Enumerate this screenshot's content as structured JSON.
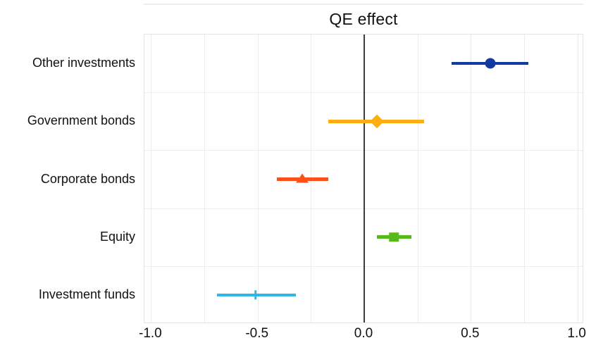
{
  "chart_data": {
    "type": "scatter",
    "subtype": "dot-and-whisker coefficient plot with confidence intervals",
    "title": "QE effect",
    "orientation": "horizontal",
    "xlabel": "",
    "ylabel": "",
    "categories": [
      "Other investments",
      "Government bonds",
      "Corporate bonds",
      "Equity",
      "Investment funds"
    ],
    "points": [
      {
        "label": "Other investments",
        "estimate": 0.59,
        "ci_low": 0.41,
        "ci_high": 0.77,
        "marker": "circle",
        "color": "#133A9E"
      },
      {
        "label": "Government bonds",
        "estimate": 0.06,
        "ci_low": -0.17,
        "ci_high": 0.28,
        "marker": "diamond",
        "color": "#FEAE10"
      },
      {
        "label": "Corporate bonds",
        "estimate": -0.29,
        "ci_low": -0.41,
        "ci_high": -0.17,
        "marker": "triangle-up",
        "color": "#FD4F16"
      },
      {
        "label": "Equity",
        "estimate": 0.14,
        "ci_low": 0.06,
        "ci_high": 0.22,
        "marker": "square",
        "color": "#57BA1A"
      },
      {
        "label": "Investment funds",
        "estimate": -0.51,
        "ci_low": -0.69,
        "ci_high": -0.32,
        "marker": "vline",
        "color": "#2CB7E8"
      }
    ],
    "x_ticks": [
      -1.0,
      -0.5,
      0.0,
      0.5,
      1.0
    ],
    "x_tick_labels": [
      "-1.0",
      "-0.5",
      "0.0",
      "0.5",
      "1.0"
    ],
    "xlim": [
      -1.031,
      1.031
    ],
    "grid": true,
    "grid_step": 0.25,
    "zero_reference_line": true,
    "legend_position": "none"
  },
  "style": {
    "background": "#ffffff",
    "text_color": "#111111",
    "grid_color": "#ececec",
    "panel_border_color": "#e4e4e4",
    "zero_line_color": "#3c3c3c",
    "top_separator_color": "#ededed"
  }
}
